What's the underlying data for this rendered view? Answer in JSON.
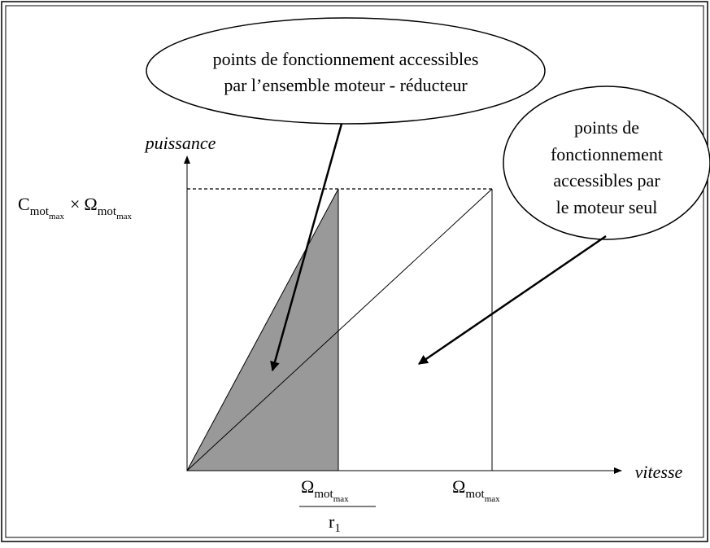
{
  "callouts": [
    {
      "lines": [
        "points de fonctionnement accessibles",
        "par l’ensemble moteur - réducteur"
      ]
    },
    {
      "lines": [
        "points de",
        "fonctionnement",
        "accessibles par",
        "le moteur seul"
      ]
    }
  ],
  "axes": {
    "y_label": "puissance",
    "x_label": "vitesse"
  },
  "labels": {
    "p_max": {
      "parts": [
        "C",
        "mot",
        "max",
        "×",
        "Ω",
        "mot",
        "max"
      ]
    },
    "omega_reduced": {
      "numerator": [
        "Ω",
        "mot",
        "max"
      ],
      "denominator": [
        "r",
        "1"
      ]
    },
    "omega_max": [
      "Ω",
      "mot",
      "max"
    ]
  }
}
